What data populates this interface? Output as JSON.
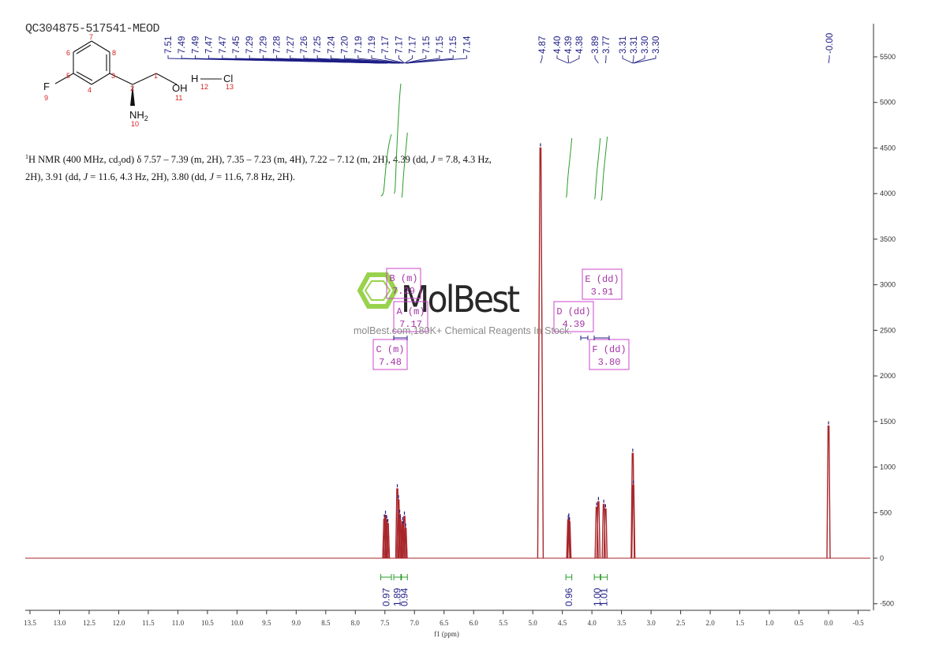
{
  "header": {
    "sample_id": "QC304875-517541-MEOD"
  },
  "description": {
    "prefix_sup": "1",
    "part1": "H NMR (400 MHz, cd",
    "sub": "3",
    "part2": "od) δ 7.57 – 7.39 (m, 2H), 7.35 – 7.23 (m, 4H), 7.22 – 7.12 (m, 2H), 4.39 (dd, ",
    "j1": "J",
    "part3": " = 7.8, 4.3 Hz, 2H), 3.91 (dd, ",
    "j2": "J",
    "part4": " = 11.6, 4.3 Hz, 2H), 3.80 (dd, ",
    "j3": "J",
    "part5": " = 11.6, 7.8 Hz, 2H)."
  },
  "structure": {
    "atoms": [
      {
        "sym": "F",
        "num": "9"
      },
      {
        "sym": "OH",
        "num": "11"
      },
      {
        "sym": "NH",
        "sub": "2",
        "num": "10"
      },
      {
        "sym": "H",
        "num": "12"
      },
      {
        "sym": "Cl",
        "num": "13"
      }
    ],
    "ring_numbers": [
      "7",
      "6",
      "8",
      "5",
      "3",
      "4"
    ],
    "chain_numbers": [
      "1",
      "2"
    ]
  },
  "watermark": {
    "brand": "MolBest",
    "tagline": "molBest.com,180K+ Chemical Reagents In Stock."
  },
  "chart_data": {
    "type": "line",
    "title": "",
    "xlabel": "f1 (ppm)",
    "ylabel": "",
    "xlim": [
      13.5,
      -0.6
    ],
    "ylim": [
      -600,
      5900
    ],
    "x_ticks": [
      "13.5",
      "13.0",
      "12.5",
      "12.0",
      "11.5",
      "11.0",
      "10.5",
      "10.0",
      "9.5",
      "9.0",
      "8.5",
      "8.0",
      "7.5",
      "7.0",
      "6.5",
      "6.0",
      "5.5",
      "5.0",
      "4.5",
      "4.0",
      "3.5",
      "3.0",
      "2.5",
      "2.0",
      "1.5",
      "1.0",
      "0.5",
      "0.0",
      "-0.5"
    ],
    "y_ticks": [
      "5500",
      "5000",
      "4500",
      "4000",
      "3500",
      "3000",
      "2500",
      "2000",
      "1500",
      "1000",
      "500",
      "0",
      "-500"
    ],
    "peak_labels": [
      "7.51",
      "7.49",
      "7.49",
      "7.47",
      "7.47",
      "7.45",
      "7.29",
      "7.29",
      "7.28",
      "7.27",
      "7.26",
      "7.25",
      "7.24",
      "7.20",
      "7.19",
      "7.19",
      "7.17",
      "7.17",
      "7.17",
      "7.15",
      "7.15",
      "7.15",
      "7.14",
      "4.87",
      "4.40",
      "4.39",
      "4.38",
      "3.89",
      "3.77",
      "3.31",
      "3.31",
      "3.30",
      "3.30",
      "-0.00"
    ],
    "peaks": [
      {
        "ppm": 7.51,
        "height": 430
      },
      {
        "ppm": 7.49,
        "height": 470
      },
      {
        "ppm": 7.47,
        "height": 420
      },
      {
        "ppm": 7.45,
        "height": 380
      },
      {
        "ppm": 7.29,
        "height": 760
      },
      {
        "ppm": 7.27,
        "height": 640
      },
      {
        "ppm": 7.25,
        "height": 480
      },
      {
        "ppm": 7.24,
        "height": 420
      },
      {
        "ppm": 7.2,
        "height": 400
      },
      {
        "ppm": 7.19,
        "height": 360
      },
      {
        "ppm": 7.17,
        "height": 460
      },
      {
        "ppm": 7.15,
        "height": 330
      },
      {
        "ppm": 4.87,
        "height": 4500
      },
      {
        "ppm": 4.4,
        "height": 420
      },
      {
        "ppm": 4.39,
        "height": 440
      },
      {
        "ppm": 4.38,
        "height": 400
      },
      {
        "ppm": 3.92,
        "height": 560
      },
      {
        "ppm": 3.89,
        "height": 620
      },
      {
        "ppm": 3.8,
        "height": 590
      },
      {
        "ppm": 3.77,
        "height": 540
      },
      {
        "ppm": 3.31,
        "height": 1150
      },
      {
        "ppm": 3.3,
        "height": 800
      },
      {
        "ppm": 0.0,
        "height": 1450
      }
    ],
    "integrations": [
      {
        "from": 7.57,
        "to": 7.39,
        "value": "0.97"
      },
      {
        "from": 7.35,
        "to": 7.23,
        "value": "1.89"
      },
      {
        "from": 7.22,
        "to": 7.12,
        "value": "0.94"
      },
      {
        "from": 4.44,
        "to": 4.34,
        "value": "0.96"
      },
      {
        "from": 3.96,
        "to": 3.86,
        "value": "1.00"
      },
      {
        "from": 3.85,
        "to": 3.74,
        "value": "1.01"
      }
    ],
    "multiplets": [
      {
        "label": "B (m)",
        "value": "7.29",
        "ppm": 7.29
      },
      {
        "label": "A (m)",
        "value": "7.17",
        "ppm": 7.17
      },
      {
        "label": "C (m)",
        "value": "7.48",
        "ppm": 7.48
      },
      {
        "label": "D (dd)",
        "value": "4.39",
        "ppm": 4.39
      },
      {
        "label": "E (dd)",
        "value": "3.91",
        "ppm": 3.91
      },
      {
        "label": "F (dd)",
        "value": "3.80",
        "ppm": 3.8
      }
    ],
    "colors": {
      "spectrum": "#a8262a",
      "peak_labels": "#1f1f86",
      "integral": "#2a9c2a",
      "multiplet_box": "#cc44cc"
    }
  }
}
